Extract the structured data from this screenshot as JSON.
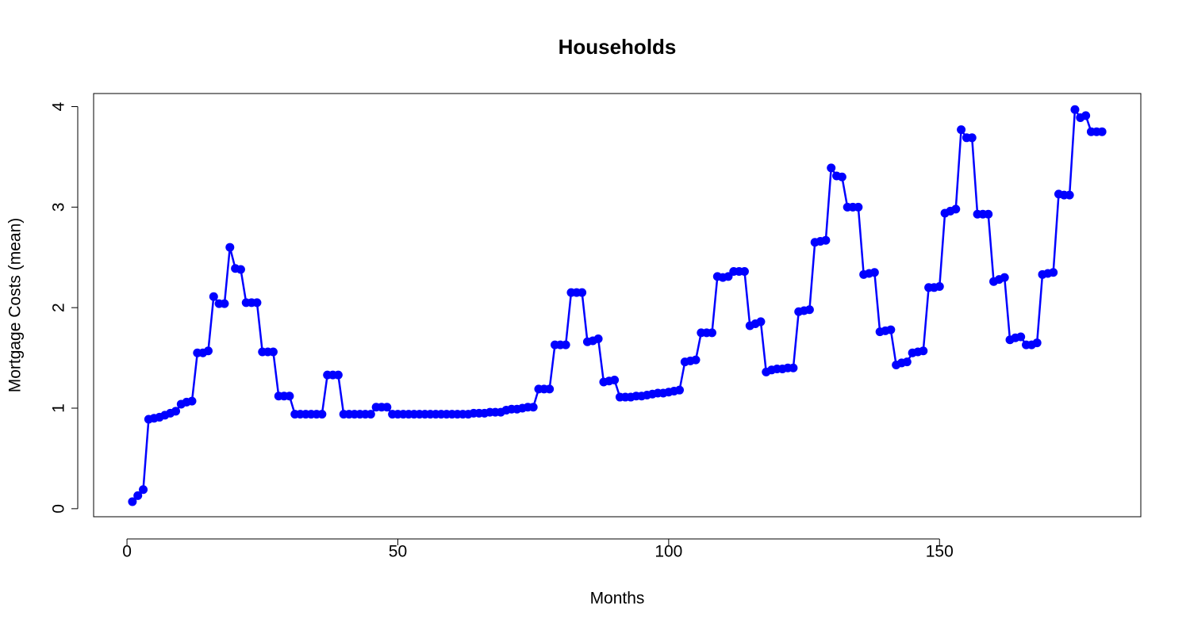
{
  "chart_data": {
    "type": "line",
    "title": "Households",
    "xlabel": "Months",
    "ylabel": "Mortgage Costs (mean)",
    "x": [
      1,
      2,
      3,
      4,
      5,
      6,
      7,
      8,
      9,
      10,
      11,
      12,
      13,
      14,
      15,
      16,
      17,
      18,
      19,
      20,
      21,
      22,
      23,
      24,
      25,
      26,
      27,
      28,
      29,
      30,
      31,
      32,
      33,
      34,
      35,
      36,
      37,
      38,
      39,
      40,
      41,
      42,
      43,
      44,
      45,
      46,
      47,
      48,
      49,
      50,
      51,
      52,
      53,
      54,
      55,
      56,
      57,
      58,
      59,
      60,
      61,
      62,
      63,
      64,
      65,
      66,
      67,
      68,
      69,
      70,
      71,
      72,
      73,
      74,
      75,
      76,
      77,
      78,
      79,
      80,
      81,
      82,
      83,
      84,
      85,
      86,
      87,
      88,
      89,
      90,
      91,
      92,
      93,
      94,
      95,
      96,
      97,
      98,
      99,
      100,
      101,
      102,
      103,
      104,
      105,
      106,
      107,
      108,
      109,
      110,
      111,
      112,
      113,
      114,
      115,
      116,
      117,
      118,
      119,
      120,
      121,
      122,
      123,
      124,
      125,
      126,
      127,
      128,
      129,
      130,
      131,
      132,
      133,
      134,
      135,
      136,
      137,
      138,
      139,
      140,
      141,
      142,
      143,
      144,
      145,
      146,
      147,
      148,
      149,
      150,
      151,
      152,
      153,
      154,
      155,
      156,
      157,
      158,
      159,
      160,
      161,
      162,
      163,
      164,
      165,
      166,
      167,
      168,
      169,
      170,
      171,
      172,
      173,
      174,
      175,
      176,
      177,
      178,
      179,
      180
    ],
    "series": [
      {
        "color": "#0000ff",
        "values": [
          0.07,
          0.13,
          0.19,
          0.89,
          0.9,
          0.91,
          0.93,
          0.95,
          0.97,
          1.04,
          1.06,
          1.07,
          1.55,
          1.55,
          1.57,
          2.11,
          2.04,
          2.04,
          2.6,
          2.39,
          2.38,
          2.05,
          2.05,
          2.05,
          1.56,
          1.56,
          1.56,
          1.12,
          1.12,
          1.12,
          0.94,
          0.94,
          0.94,
          0.94,
          0.94,
          0.94,
          1.33,
          1.33,
          1.33,
          0.94,
          0.94,
          0.94,
          0.94,
          0.94,
          0.94,
          1.01,
          1.01,
          1.01,
          0.94,
          0.94,
          0.94,
          0.94,
          0.94,
          0.94,
          0.94,
          0.94,
          0.94,
          0.94,
          0.94,
          0.94,
          0.94,
          0.94,
          0.94,
          0.95,
          0.95,
          0.95,
          0.96,
          0.96,
          0.96,
          0.98,
          0.99,
          0.99,
          1.0,
          1.01,
          1.01,
          1.19,
          1.19,
          1.19,
          1.63,
          1.63,
          1.63,
          2.15,
          2.15,
          2.15,
          1.66,
          1.67,
          1.69,
          1.26,
          1.27,
          1.28,
          1.11,
          1.11,
          1.11,
          1.12,
          1.12,
          1.13,
          1.14,
          1.15,
          1.15,
          1.16,
          1.17,
          1.18,
          1.46,
          1.47,
          1.48,
          1.75,
          1.75,
          1.75,
          2.31,
          2.3,
          2.31,
          2.36,
          2.36,
          2.36,
          1.82,
          1.84,
          1.86,
          1.36,
          1.38,
          1.39,
          1.39,
          1.4,
          1.4,
          1.96,
          1.97,
          1.98,
          2.65,
          2.66,
          2.67,
          3.39,
          3.31,
          3.3,
          3,
          3,
          3,
          2.33,
          2.34,
          2.35,
          1.76,
          1.77,
          1.78,
          1.43,
          1.45,
          1.46,
          1.55,
          1.56,
          1.57,
          2.2,
          2.2,
          2.21,
          2.94,
          2.96,
          2.98,
          3.77,
          3.69,
          3.69,
          2.93,
          2.93,
          2.93,
          2.26,
          2.28,
          2.3,
          1.68,
          1.7,
          1.71,
          1.63,
          1.63,
          1.65,
          2.33,
          2.34,
          2.35,
          3.13,
          3.12,
          3.12,
          3.97,
          3.89,
          3.91,
          3.75,
          3.75,
          3.75
        ]
      }
    ],
    "xlim": [
      -6.16,
      187.16
    ],
    "ylim": [
      -0.08,
      4.13
    ],
    "xticks": [
      0,
      50,
      100,
      150
    ],
    "yticks": [
      0,
      1,
      2,
      3,
      4
    ]
  }
}
